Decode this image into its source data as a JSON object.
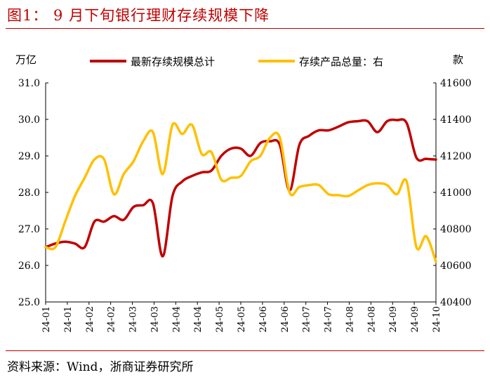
{
  "figure_title": "图1：  9 月下旬银行理财存续规模下降",
  "source": "资料来源：Wind，浙商证券研究所",
  "chart_data": {
    "type": "line",
    "left_axis": {
      "unit": "万亿",
      "ylim": [
        25.0,
        31.0
      ],
      "ticks": [
        "25.0",
        "26.0",
        "27.0",
        "28.0",
        "29.0",
        "30.0",
        "31.0"
      ]
    },
    "right_axis": {
      "unit": "款",
      "ylim": [
        40400,
        41600
      ],
      "ticks": [
        "40400",
        "40600",
        "40800",
        "41000",
        "41200",
        "41400",
        "41600"
      ]
    },
    "x_ticks": [
      "24-01",
      "24-01",
      "24-02",
      "24-02",
      "24-03",
      "24-03",
      "24-04",
      "24-04",
      "24-05",
      "24-05",
      "24-06",
      "24-06",
      "24-07",
      "24-07",
      "24-08",
      "24-08",
      "24-09",
      "24-09",
      "24-10"
    ],
    "legend": [
      "最新存续规模总计",
      "存续产品总量：右"
    ],
    "series": [
      {
        "name": "最新存续规模总计",
        "axis": "left",
        "color": "#c00000",
        "values": [
          26.5,
          26.6,
          26.65,
          26.6,
          26.5,
          27.2,
          27.2,
          27.35,
          27.25,
          27.6,
          27.65,
          27.7,
          26.25,
          27.9,
          28.3,
          28.45,
          28.55,
          28.6,
          29.0,
          29.2,
          29.2,
          29.0,
          29.35,
          29.4,
          29.3,
          28.05,
          29.3,
          29.55,
          29.7,
          29.7,
          29.8,
          29.92,
          29.95,
          29.95,
          29.65,
          29.95,
          29.98,
          29.9,
          28.95,
          28.92,
          28.9
        ]
      },
      {
        "name": "存续产品总量：右",
        "axis": "right",
        "color": "#ffc000",
        "values": [
          40700,
          40700,
          40840,
          40980,
          41080,
          41180,
          41180,
          40990,
          41100,
          41170,
          41280,
          41330,
          41100,
          41370,
          41320,
          41370,
          41210,
          41220,
          41070,
          41080,
          41090,
          41170,
          41200,
          41300,
          41300,
          41000,
          41030,
          41040,
          41040,
          40990,
          40985,
          40980,
          41010,
          41040,
          41050,
          41040,
          40990,
          41060,
          40700,
          40760,
          40620
        ]
      }
    ],
    "grid": false
  }
}
